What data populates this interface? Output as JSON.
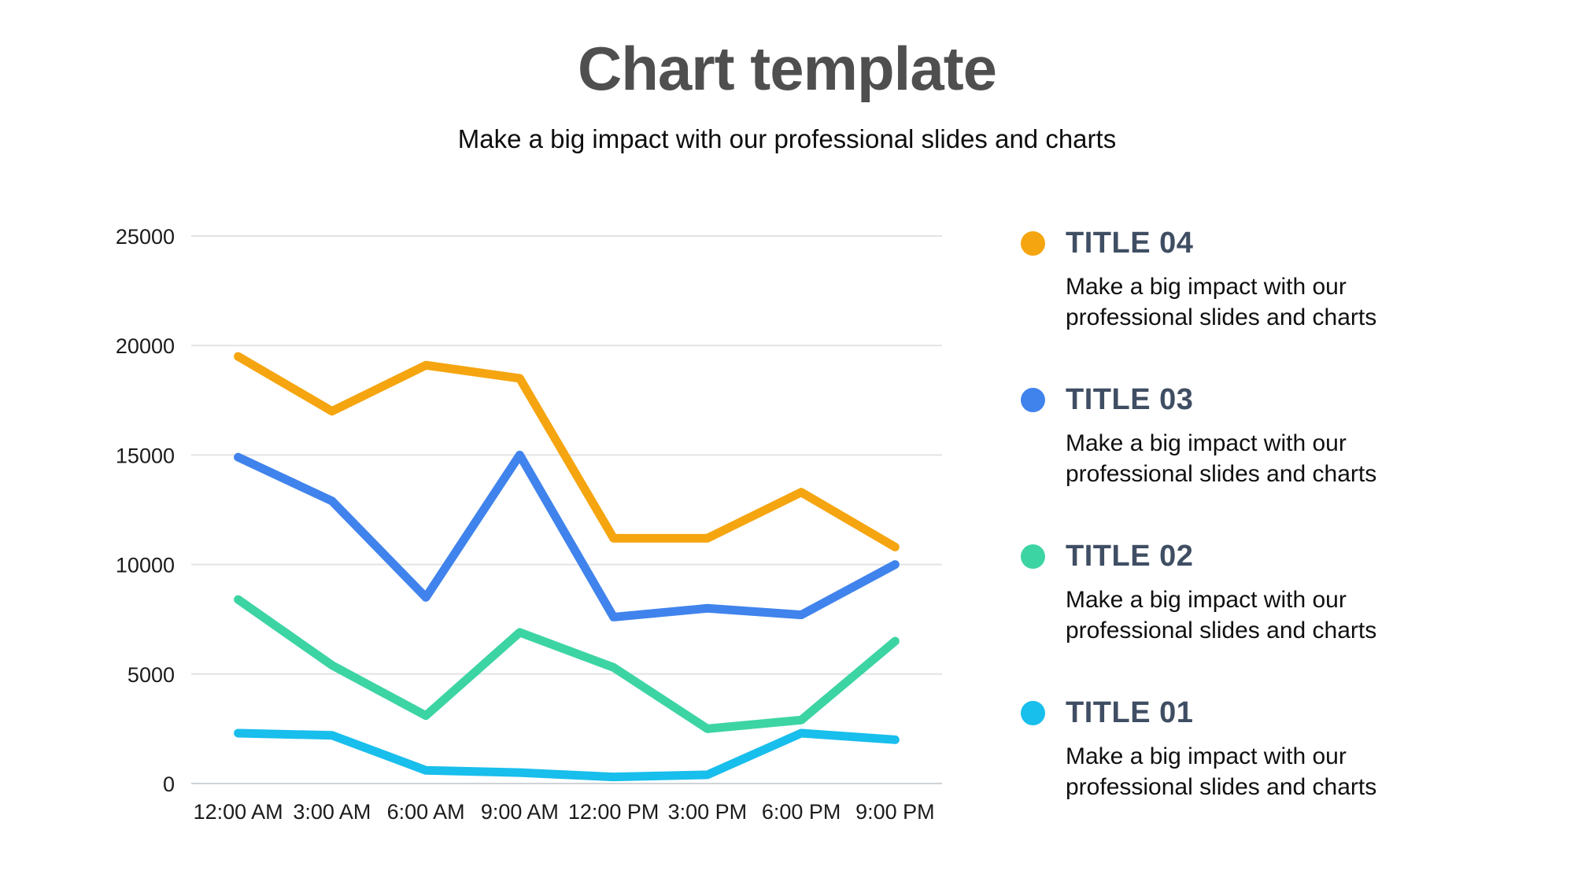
{
  "header": {
    "title": "Chart template",
    "subtitle": "Make a big impact with our professional slides and charts"
  },
  "chart_data": {
    "type": "line",
    "categories": [
      "12:00 AM",
      "3:00 AM",
      "6:00 AM",
      "9:00 AM",
      "12:00 PM",
      "3:00 PM",
      "6:00 PM",
      "9:00 PM"
    ],
    "series": [
      {
        "name": "TITLE 04",
        "color": "#F5A50F",
        "values": [
          19500,
          17000,
          19100,
          18500,
          11200,
          11200,
          13300,
          10800
        ]
      },
      {
        "name": "TITLE 03",
        "color": "#4083EC",
        "values": [
          14900,
          12900,
          8500,
          15000,
          7600,
          8000,
          7700,
          10000
        ]
      },
      {
        "name": "TITLE 02",
        "color": "#3DD4A4",
        "values": [
          8400,
          5400,
          3100,
          6900,
          5300,
          2500,
          2900,
          6500
        ]
      },
      {
        "name": "TITLE 01",
        "color": "#18BEEC",
        "values": [
          2300,
          2200,
          600,
          500,
          300,
          400,
          2300,
          2000
        ]
      }
    ],
    "title": "Chart template",
    "xlabel": "",
    "ylabel": "",
    "ylim": [
      0,
      25000
    ],
    "yticks": [
      0,
      5000,
      10000,
      15000,
      20000,
      25000
    ],
    "grid": "horizontal",
    "grid_color": "#E3E3E3",
    "axis_line_color": "#CFD3D8",
    "legend_position": "right",
    "line_width": 11
  },
  "legend": {
    "items": [
      {
        "label": "TITLE 04",
        "color": "#F5A50F",
        "description": "Make a big impact with our professional slides and charts"
      },
      {
        "label": "TITLE 03",
        "color": "#4083EC",
        "description": "Make a big impact with our professional slides and charts"
      },
      {
        "label": "TITLE 02",
        "color": "#3DD4A4",
        "description": "Make a big impact with our professional slides and charts"
      },
      {
        "label": "TITLE 01",
        "color": "#18BEEC",
        "description": "Make a big impact with our professional slides and charts"
      }
    ]
  }
}
